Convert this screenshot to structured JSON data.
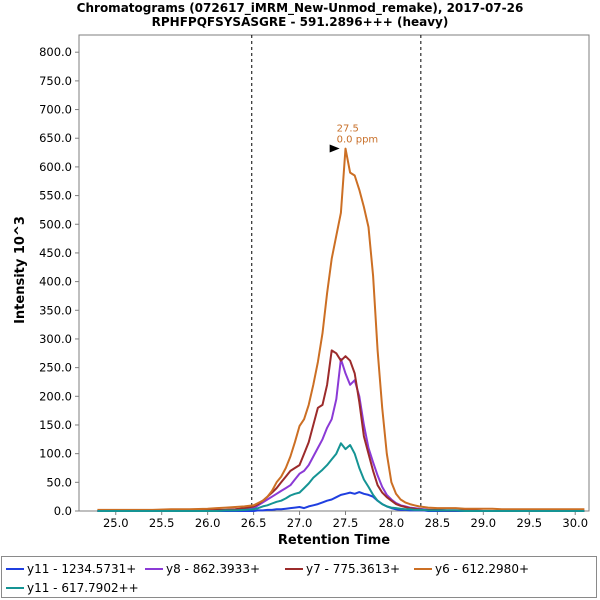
{
  "chart_data": {
    "type": "line",
    "title": "Chromatograms (072617_iMRM_New-Unmod_remake), 2017-07-26",
    "subtitle": "RPHFPQFSYSASGRE - 591.2896+++ (heavy)",
    "xlabel": "Retention Time",
    "ylabel": "Intensity 10^3",
    "xlim": [
      24.6,
      30.15
    ],
    "ylim": [
      0,
      830
    ],
    "x_ticks": [
      "25.0",
      "25.5",
      "26.0",
      "26.5",
      "27.0",
      "27.5",
      "28.0",
      "28.5",
      "29.0",
      "29.5",
      "30.0"
    ],
    "y_ticks": [
      "0.0",
      "50.0",
      "100.0",
      "150.0",
      "200.0",
      "250.0",
      "300.0",
      "350.0",
      "400.0",
      "450.0",
      "500.0",
      "550.0",
      "600.0",
      "650.0",
      "700.0",
      "750.0",
      "800.0"
    ],
    "grid": false,
    "legend_position": "bottom",
    "integration_boundaries": [
      26.48,
      28.32
    ],
    "peak_annotation": {
      "x": 27.48,
      "y": 632,
      "rt_label": "27.5",
      "ppm_label": "0.0 ppm",
      "color": "#c8702a"
    },
    "x": [
      24.8,
      25.0,
      25.2,
      25.4,
      25.6,
      25.8,
      26.0,
      26.1,
      26.2,
      26.3,
      26.4,
      26.5,
      26.55,
      26.6,
      26.65,
      26.7,
      26.75,
      26.8,
      26.85,
      26.9,
      26.95,
      27.0,
      27.05,
      27.1,
      27.15,
      27.2,
      27.25,
      27.3,
      27.35,
      27.4,
      27.45,
      27.5,
      27.55,
      27.6,
      27.65,
      27.7,
      27.75,
      27.8,
      27.85,
      27.9,
      27.95,
      28.0,
      28.05,
      28.1,
      28.15,
      28.2,
      28.25,
      28.3,
      28.35,
      28.4,
      28.5,
      28.6,
      28.7,
      28.8,
      28.9,
      29.0,
      29.1,
      29.2,
      29.3,
      29.4,
      29.5,
      29.6,
      29.7,
      29.8,
      29.9,
      30.0,
      30.1
    ],
    "series": [
      {
        "name": "y11 - 1234.5731+",
        "color": "#1f3fe0",
        "values": [
          0,
          0,
          0,
          0,
          0,
          0,
          0,
          0,
          0,
          0,
          0,
          0,
          1,
          1,
          2,
          2,
          3,
          3,
          4,
          5,
          6,
          7,
          5,
          8,
          10,
          12,
          15,
          18,
          20,
          24,
          28,
          30,
          32,
          30,
          33,
          30,
          28,
          25,
          18,
          12,
          8,
          5,
          3,
          2,
          2,
          1,
          1,
          1,
          1,
          0,
          0,
          0,
          0,
          0,
          0,
          0,
          0,
          0,
          0,
          0,
          0,
          0,
          0,
          0,
          0,
          0,
          0
        ]
      },
      {
        "name": "y8 - 862.3933+",
        "color": "#8b3ad6",
        "values": [
          0,
          0,
          0,
          0,
          0,
          0,
          1,
          1,
          2,
          2,
          3,
          5,
          10,
          15,
          20,
          25,
          30,
          35,
          40,
          45,
          55,
          65,
          70,
          80,
          95,
          110,
          125,
          145,
          160,
          195,
          265,
          240,
          220,
          228,
          200,
          150,
          110,
          85,
          62,
          42,
          28,
          20,
          14,
          10,
          8,
          6,
          5,
          4,
          3,
          2,
          2,
          1,
          1,
          1,
          1,
          0,
          0,
          0,
          0,
          0,
          0,
          0,
          0,
          0,
          0,
          0,
          0
        ]
      },
      {
        "name": "y7 - 775.3613+",
        "color": "#9c2b2b",
        "values": [
          0,
          0,
          0,
          0,
          0,
          1,
          1,
          2,
          2,
          3,
          5,
          8,
          12,
          18,
          25,
          32,
          40,
          50,
          60,
          70,
          75,
          80,
          100,
          120,
          150,
          180,
          185,
          220,
          280,
          275,
          262,
          270,
          262,
          240,
          190,
          130,
          100,
          70,
          45,
          32,
          24,
          18,
          12,
          9,
          7,
          5,
          4,
          3,
          2,
          2,
          2,
          1,
          1,
          1,
          1,
          0,
          0,
          0,
          0,
          0,
          0,
          0,
          0,
          0,
          0,
          0,
          0
        ]
      },
      {
        "name": "y6 - 612.2980+",
        "color": "#cc6f24",
        "values": [
          2,
          2,
          2,
          2,
          3,
          3,
          4,
          5,
          6,
          7,
          8,
          10,
          14,
          18,
          25,
          35,
          50,
          60,
          75,
          95,
          120,
          148,
          160,
          185,
          220,
          260,
          310,
          380,
          440,
          480,
          520,
          632,
          590,
          585,
          560,
          530,
          495,
          410,
          280,
          180,
          100,
          50,
          30,
          20,
          15,
          12,
          10,
          8,
          7,
          6,
          5,
          5,
          5,
          4,
          4,
          4,
          4,
          3,
          3,
          3,
          3,
          3,
          3,
          3,
          3,
          3,
          3
        ]
      },
      {
        "name": "y11 - 617.7902++",
        "color": "#159494",
        "values": [
          0,
          0,
          0,
          0,
          0,
          0,
          0,
          0,
          1,
          1,
          2,
          3,
          5,
          8,
          10,
          13,
          16,
          18,
          22,
          27,
          30,
          32,
          40,
          48,
          58,
          65,
          72,
          80,
          90,
          100,
          118,
          108,
          115,
          100,
          75,
          55,
          42,
          28,
          18,
          12,
          8,
          6,
          5,
          4,
          3,
          3,
          2,
          2,
          2,
          1,
          1,
          1,
          1,
          0,
          0,
          0,
          0,
          0,
          0,
          0,
          0,
          0,
          0,
          0,
          0,
          0,
          0
        ]
      }
    ]
  }
}
